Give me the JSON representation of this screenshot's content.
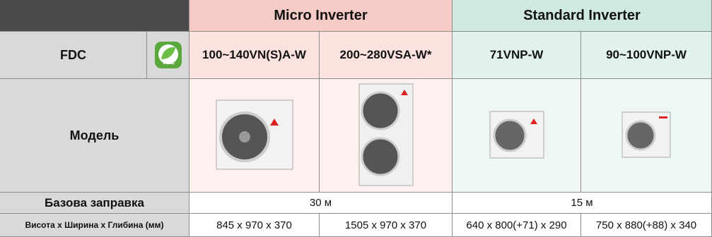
{
  "table": {
    "groups": [
      "Micro Inverter",
      "Standard Inverter"
    ],
    "fdc_label": "FDC",
    "icon_label": "R32",
    "models": [
      "100~140VN(S)A-W",
      "200~280VSA-W*",
      "71VNP-W",
      "90~100VNP-W"
    ],
    "row_labels": [
      "Модель",
      "Базова заправка",
      "Висота х Ширина х Глибина (мм)"
    ],
    "charge": [
      "30 м",
      "15 м"
    ],
    "dimensions": [
      "845 x 970 x 370",
      "1505 x 970 x 370",
      "640 x 800(+71) x 290",
      "750 x 880(+88) x 340"
    ]
  }
}
